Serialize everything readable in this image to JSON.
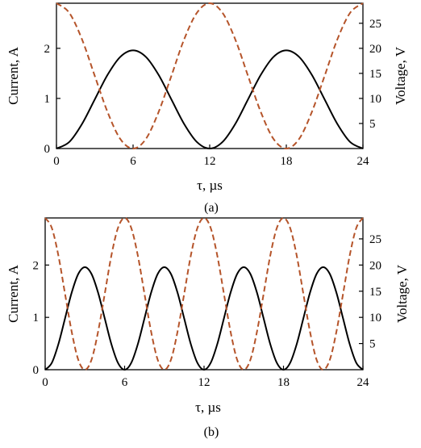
{
  "chart_data": [
    {
      "type": "line",
      "panel_label": "(a)",
      "xlabel": "τ, µs",
      "ylabel_left": "Current, A",
      "ylabel_right": "Voltage, V",
      "xlim": [
        0,
        24
      ],
      "ylim_left": [
        0,
        2.9
      ],
      "ylim_right": [
        0,
        29
      ],
      "x_ticks": [
        0,
        6,
        12,
        18,
        24
      ],
      "y_ticks_left": [
        0,
        1,
        2
      ],
      "y_ticks_right": [
        5,
        10,
        15,
        20,
        25
      ],
      "grid": false,
      "series": [
        {
          "axis": "left",
          "style": "solid",
          "color": "#000000",
          "x": [
            0,
            1,
            2,
            3,
            4,
            5,
            6,
            7,
            8,
            9,
            10,
            11,
            12,
            13,
            14,
            15,
            16,
            17,
            18,
            19,
            20,
            21,
            22,
            23,
            24
          ],
          "values": [
            0.0,
            0.13,
            0.49,
            0.98,
            1.47,
            1.83,
            1.96,
            1.83,
            1.47,
            0.98,
            0.49,
            0.13,
            0.0,
            0.13,
            0.49,
            0.98,
            1.47,
            1.83,
            1.96,
            1.83,
            1.47,
            0.98,
            0.49,
            0.13,
            0.0
          ]
        },
        {
          "axis": "right",
          "style": "dashed",
          "color": "#b5542a",
          "x": [
            0,
            1,
            2,
            3,
            4,
            5,
            6,
            7,
            8,
            9,
            10,
            11,
            12,
            13,
            14,
            15,
            16,
            17,
            18,
            19,
            20,
            21,
            22,
            23,
            24
          ],
          "values": [
            29.0,
            27.1,
            21.8,
            14.5,
            7.3,
            1.9,
            0.0,
            1.9,
            7.3,
            14.5,
            21.8,
            27.1,
            29.0,
            27.1,
            21.8,
            14.5,
            7.3,
            1.9,
            0.0,
            1.9,
            7.3,
            14.5,
            21.8,
            27.1,
            29.0
          ]
        }
      ]
    },
    {
      "type": "line",
      "panel_label": "(b)",
      "xlabel": "τ, µs",
      "ylabel_left": "Current, A",
      "ylabel_right": "Voltage, V",
      "xlim": [
        0,
        24
      ],
      "ylim_left": [
        0,
        2.9
      ],
      "ylim_right": [
        0,
        29
      ],
      "x_ticks": [
        0,
        6,
        12,
        18,
        24
      ],
      "y_ticks_left": [
        0,
        1,
        2
      ],
      "y_ticks_right": [
        5,
        10,
        15,
        20,
        25
      ],
      "grid": false,
      "series": [
        {
          "axis": "left",
          "style": "solid",
          "color": "#000000",
          "x": [
            0,
            0.5,
            1,
            1.5,
            2,
            2.5,
            3,
            3.5,
            4,
            4.5,
            5,
            5.5,
            6,
            6.5,
            7,
            7.5,
            8,
            8.5,
            9,
            9.5,
            10,
            10.5,
            11,
            11.5,
            12,
            12.5,
            13,
            13.5,
            14,
            14.5,
            15,
            15.5,
            16,
            16.5,
            17,
            17.5,
            18,
            18.5,
            19,
            19.5,
            20,
            20.5,
            21,
            21.5,
            22,
            22.5,
            23,
            23.5,
            24
          ],
          "values": [
            0.0,
            0.13,
            0.49,
            0.98,
            1.47,
            1.83,
            1.96,
            1.83,
            1.47,
            0.98,
            0.49,
            0.13,
            0.0,
            0.13,
            0.49,
            0.98,
            1.47,
            1.83,
            1.96,
            1.83,
            1.47,
            0.98,
            0.49,
            0.13,
            0.0,
            0.13,
            0.49,
            0.98,
            1.47,
            1.83,
            1.96,
            1.83,
            1.47,
            0.98,
            0.49,
            0.13,
            0.0,
            0.13,
            0.49,
            0.98,
            1.47,
            1.83,
            1.96,
            1.83,
            1.47,
            0.98,
            0.49,
            0.13,
            0.0
          ]
        },
        {
          "axis": "right",
          "style": "dashed",
          "color": "#b5542a",
          "x": [
            0,
            0.5,
            1,
            1.5,
            2,
            2.5,
            3,
            3.5,
            4,
            4.5,
            5,
            5.5,
            6,
            6.5,
            7,
            7.5,
            8,
            8.5,
            9,
            9.5,
            10,
            10.5,
            11,
            11.5,
            12,
            12.5,
            13,
            13.5,
            14,
            14.5,
            15,
            15.5,
            16,
            16.5,
            17,
            17.5,
            18,
            18.5,
            19,
            19.5,
            20,
            20.5,
            21,
            21.5,
            22,
            22.5,
            23,
            23.5,
            24
          ],
          "values": [
            29.0,
            27.1,
            21.8,
            14.5,
            7.3,
            1.9,
            0.0,
            1.9,
            7.3,
            14.5,
            21.8,
            27.1,
            29.0,
            27.1,
            21.8,
            14.5,
            7.3,
            1.9,
            0.0,
            1.9,
            7.3,
            14.5,
            21.8,
            27.1,
            29.0,
            27.1,
            21.8,
            14.5,
            7.3,
            1.9,
            0.0,
            1.9,
            7.3,
            14.5,
            21.8,
            27.1,
            29.0,
            27.1,
            21.8,
            14.5,
            7.3,
            1.9,
            0.0,
            1.9,
            7.3,
            14.5,
            21.8,
            27.1,
            29.0
          ]
        }
      ]
    }
  ]
}
